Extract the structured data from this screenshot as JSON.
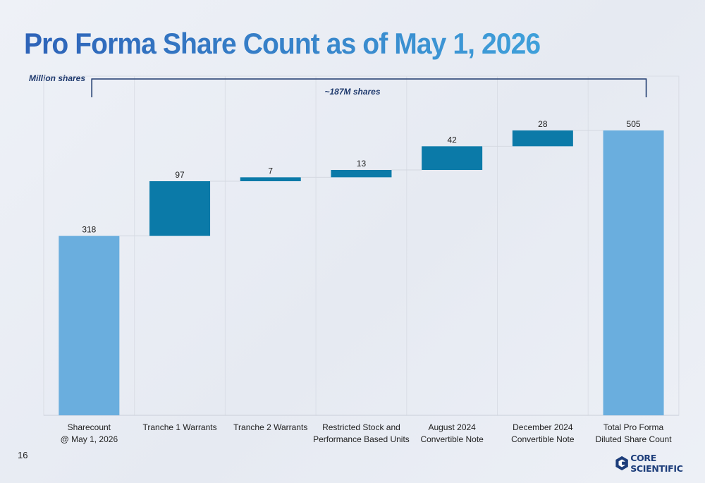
{
  "slide": {
    "title": "Pro Forma Share Count as of May 1, 2026",
    "page_number": "16",
    "logo_text": "CORE SCIENTIFIC"
  },
  "colors": {
    "title_start": "#2e63b8",
    "title_end": "#3fa0da",
    "total_bar": "#6aaede",
    "increment_bar": "#0b7aa8",
    "connector": "#d3d8e0",
    "text": "#222222",
    "bracket": "#1f3a6e"
  },
  "chart_data": {
    "type": "waterfall",
    "units_label": "Million shares",
    "bracket_label": "~187M shares",
    "categories": [
      [
        "Sharecount",
        "@ May 1, 2026"
      ],
      [
        "Tranche 1 Warrants"
      ],
      [
        "Tranche 2 Warrants"
      ],
      [
        "Restricted Stock and",
        "Performance Based Units"
      ],
      [
        "August 2024",
        "Convertible Note"
      ],
      [
        "December 2024",
        "Convertible Note"
      ],
      [
        "Total Pro Forma",
        "Diluted Share Count"
      ]
    ],
    "values": [
      318,
      97,
      7,
      13,
      42,
      28,
      505
    ],
    "bar_kind": [
      "total",
      "increment",
      "increment",
      "increment",
      "increment",
      "increment",
      "total"
    ],
    "ylim": [
      0,
      505
    ],
    "grid": false,
    "legend": "none"
  }
}
